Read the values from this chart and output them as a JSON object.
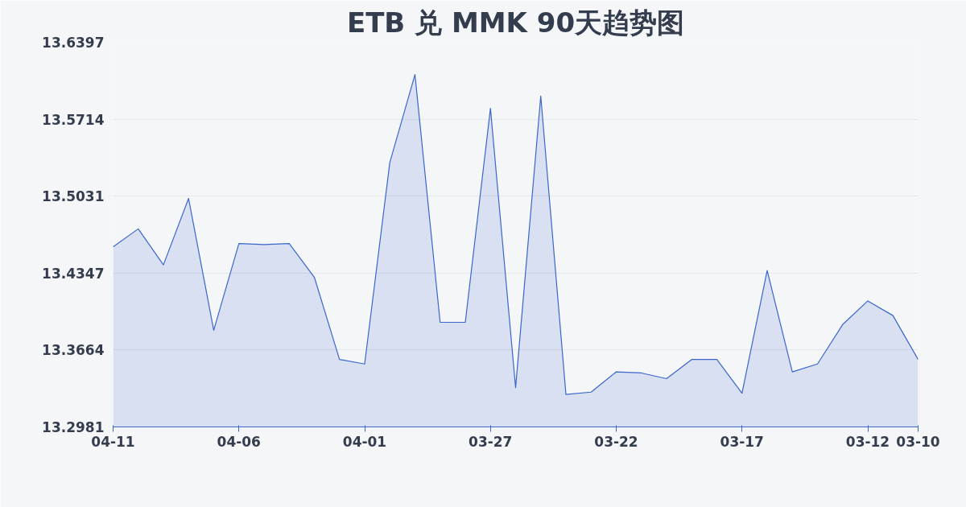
{
  "chart_data": {
    "type": "area",
    "title": "ETB 兑 MMK 90天趋势图",
    "categories": [
      "04-11",
      null,
      null,
      null,
      null,
      "04-06",
      null,
      null,
      null,
      null,
      "04-01",
      null,
      null,
      null,
      null,
      "03-27",
      null,
      null,
      null,
      null,
      "03-22",
      null,
      null,
      null,
      null,
      "03-17",
      null,
      null,
      null,
      null,
      "03-12",
      null,
      "03-10"
    ],
    "series": [
      {
        "color": "#3a66cc",
        "values": [
          13.458,
          13.474,
          13.442,
          13.501,
          13.384,
          13.461,
          13.46,
          13.461,
          13.431,
          13.358,
          13.354,
          13.533,
          13.611,
          13.391,
          13.391,
          13.581,
          13.333,
          13.592,
          13.327,
          13.329,
          13.347,
          13.346,
          13.341,
          13.358,
          13.358,
          13.328,
          13.437,
          13.347,
          13.354,
          13.389,
          13.41,
          13.397,
          13.358
        ]
      }
    ],
    "ylim": [
      13.2981,
      13.6397
    ],
    "yticks": [
      13.2981,
      13.3664,
      13.4347,
      13.5031,
      13.5714,
      13.6397
    ],
    "grid": "y"
  }
}
